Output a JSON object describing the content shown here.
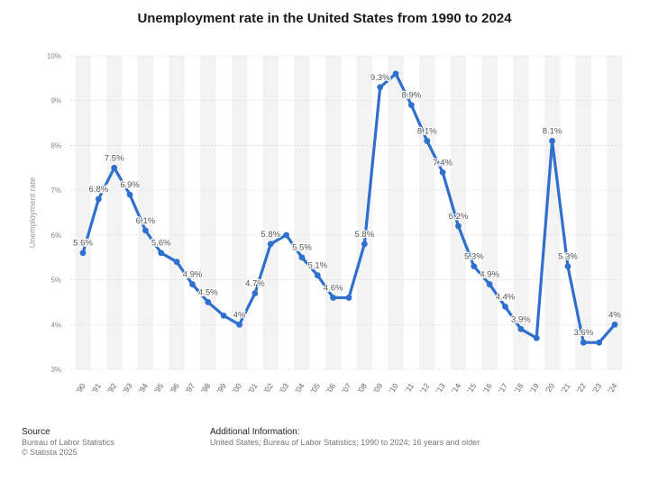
{
  "chart_data": {
    "type": "line",
    "title": "Unemployment rate in the United States from 1990 to 2024",
    "ylabel": "Unemployment rate",
    "xlabel": "",
    "ylim": [
      3,
      10
    ],
    "yticks": [
      "3%",
      "4%",
      "5%",
      "6%",
      "7%",
      "8%",
      "9%",
      "10%"
    ],
    "categories": [
      "'90",
      "'91",
      "'92",
      "'93",
      "'94",
      "'95",
      "'96",
      "'97",
      "'98",
      "'99",
      "'00",
      "'01",
      "'02",
      "'03",
      "'04",
      "'05",
      "'06",
      "'07",
      "'08",
      "'09",
      "'10",
      "'11",
      "'12",
      "'13",
      "'14",
      "'15",
      "'16",
      "'17",
      "'18",
      "'19",
      "'20",
      "'21",
      "'22",
      "'23",
      "'24"
    ],
    "values": [
      5.6,
      6.8,
      7.5,
      6.9,
      6.1,
      5.6,
      5.4,
      4.9,
      4.5,
      4.2,
      4.0,
      4.7,
      5.8,
      6.0,
      5.5,
      5.1,
      4.6,
      4.6,
      5.8,
      9.3,
      9.6,
      8.9,
      8.1,
      7.4,
      6.2,
      5.3,
      4.9,
      4.4,
      3.9,
      3.7,
      8.1,
      5.3,
      3.6,
      3.6,
      4.0
    ],
    "data_labels": [
      "5.6%",
      "6.8%",
      "7.5%",
      "6.9%",
      "6.1%",
      "5.6%",
      "",
      "4.9%",
      "4.5%",
      "",
      "4%",
      "4.7%",
      "5.8%",
      "",
      "5.5%",
      "5.1%",
      "4.6%",
      "",
      "5.8%",
      "9.3%",
      "",
      "8.9%",
      "8.1%",
      "7.4%",
      "6.2%",
      "5.3%",
      "4.9%",
      "4.4%",
      "3.9%",
      "",
      "8.1%",
      "5.3%",
      "3.6%",
      "",
      "4%"
    ],
    "line_color": "#2f6fce",
    "grid": true
  },
  "footer": {
    "source_heading": "Source",
    "source_line1": "Bureau of Labor Statistics",
    "source_line2": "© Statista 2025",
    "info_heading": "Additional Information:",
    "info_line1": "United States; Bureau of Labor Statistics; 1990 to 2024; 16 years and older"
  }
}
